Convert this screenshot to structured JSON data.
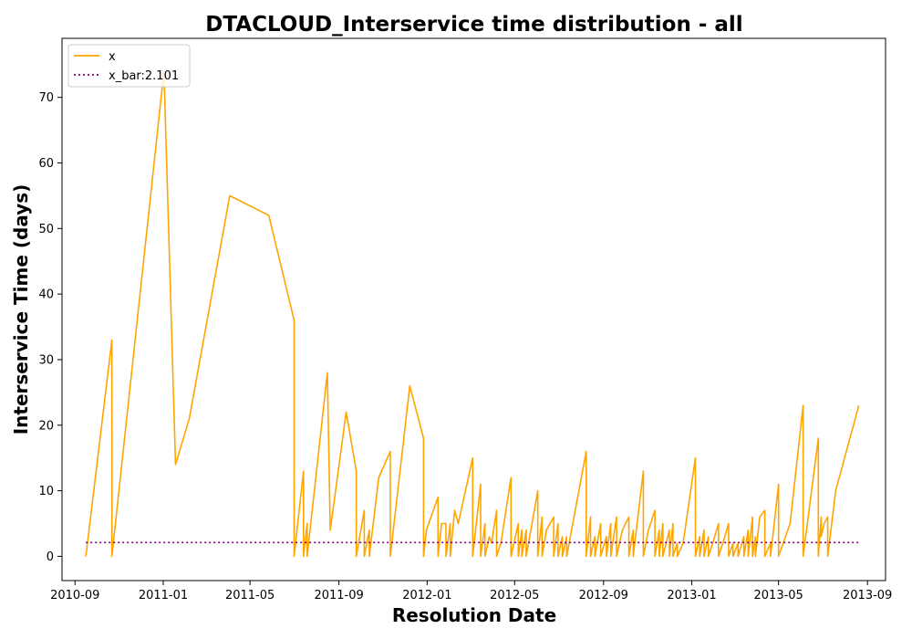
{
  "chart_data": {
    "type": "line",
    "title": "DTACLOUD_Interservice time distribution - all",
    "xlabel": "Resolution Date",
    "ylabel": "Interservice Time (days)",
    "x_ticks": [
      "2010-09",
      "2011-01",
      "2011-05",
      "2011-09",
      "2012-01",
      "2012-05",
      "2012-09",
      "2013-01",
      "2013-05",
      "2013-09"
    ],
    "y_ticks": [
      0,
      10,
      20,
      30,
      40,
      50,
      60,
      70
    ],
    "xlim": [
      "2010-08-14",
      "2013-09-26"
    ],
    "ylim": [
      -3.7,
      79
    ],
    "grid": false,
    "legend_position": "top-left",
    "series": [
      {
        "name": "x",
        "color": "#ffa500",
        "style": "solid",
        "points": [
          [
            "2010-09-16",
            0
          ],
          [
            "2010-10-22",
            33
          ],
          [
            "2010-10-22",
            0
          ],
          [
            "2011-01-02",
            74
          ],
          [
            "2011-01-18",
            14
          ],
          [
            "2011-02-06",
            21
          ],
          [
            "2011-04-03",
            55
          ],
          [
            "2011-05-27",
            52
          ],
          [
            "2011-07-01",
            36
          ],
          [
            "2011-07-01",
            0
          ],
          [
            "2011-07-14",
            13
          ],
          [
            "2011-07-14",
            0
          ],
          [
            "2011-07-19",
            5
          ],
          [
            "2011-07-19",
            0
          ],
          [
            "2011-08-16",
            28
          ],
          [
            "2011-08-20",
            4
          ],
          [
            "2011-09-11",
            22
          ],
          [
            "2011-09-25",
            13
          ],
          [
            "2011-09-25",
            0
          ],
          [
            "2011-10-06",
            7
          ],
          [
            "2011-10-06",
            0
          ],
          [
            "2011-10-13",
            4
          ],
          [
            "2011-10-13",
            0
          ],
          [
            "2011-10-26",
            12
          ],
          [
            "2011-11-11",
            16
          ],
          [
            "2011-11-11",
            0
          ],
          [
            "2011-12-08",
            26
          ],
          [
            "2011-12-27",
            18
          ],
          [
            "2011-12-27",
            0
          ],
          [
            "2011-12-31",
            4
          ],
          [
            "2012-01-16",
            9
          ],
          [
            "2012-01-16",
            0
          ],
          [
            "2012-01-21",
            5
          ],
          [
            "2012-01-27",
            5
          ],
          [
            "2012-01-27",
            0
          ],
          [
            "2012-02-02",
            5
          ],
          [
            "2012-02-02",
            0
          ],
          [
            "2012-02-08",
            7
          ],
          [
            "2012-02-13",
            5
          ],
          [
            "2012-03-04",
            15
          ],
          [
            "2012-03-04",
            0
          ],
          [
            "2012-03-15",
            11
          ],
          [
            "2012-03-15",
            0
          ],
          [
            "2012-03-21",
            5
          ],
          [
            "2012-03-21",
            0
          ],
          [
            "2012-03-27",
            3
          ],
          [
            "2012-03-30",
            2
          ],
          [
            "2012-04-06",
            7
          ],
          [
            "2012-04-06",
            0
          ],
          [
            "2012-04-12",
            2
          ],
          [
            "2012-04-26",
            12
          ],
          [
            "2012-04-26",
            0
          ],
          [
            "2012-05-06",
            5
          ],
          [
            "2012-05-06",
            0
          ],
          [
            "2012-05-11",
            4
          ],
          [
            "2012-05-11",
            0
          ],
          [
            "2012-05-17",
            4
          ],
          [
            "2012-05-17",
            0
          ],
          [
            "2012-06-02",
            10
          ],
          [
            "2012-06-02",
            0
          ],
          [
            "2012-06-08",
            6
          ],
          [
            "2012-06-08",
            0
          ],
          [
            "2012-06-14",
            4
          ],
          [
            "2012-06-24",
            6
          ],
          [
            "2012-06-24",
            0
          ],
          [
            "2012-06-30",
            5
          ],
          [
            "2012-06-30",
            0
          ],
          [
            "2012-07-06",
            3
          ],
          [
            "2012-07-06",
            0
          ],
          [
            "2012-07-12",
            3
          ],
          [
            "2012-07-12",
            0
          ],
          [
            "2012-08-08",
            16
          ],
          [
            "2012-08-08",
            0
          ],
          [
            "2012-08-14",
            6
          ],
          [
            "2012-08-14",
            0
          ],
          [
            "2012-08-20",
            3
          ],
          [
            "2012-08-20",
            0
          ],
          [
            "2012-08-28",
            5
          ],
          [
            "2012-08-28",
            0
          ],
          [
            "2012-09-05",
            3
          ],
          [
            "2012-09-05",
            0
          ],
          [
            "2012-09-11",
            5
          ],
          [
            "2012-09-11",
            0
          ],
          [
            "2012-09-19",
            6
          ],
          [
            "2012-09-19",
            0
          ],
          [
            "2012-09-27",
            4
          ],
          [
            "2012-10-06",
            6
          ],
          [
            "2012-10-06",
            0
          ],
          [
            "2012-10-12",
            4
          ],
          [
            "2012-10-12",
            0
          ],
          [
            "2012-10-26",
            13
          ],
          [
            "2012-10-26",
            0
          ],
          [
            "2012-11-02",
            4
          ],
          [
            "2012-11-11",
            7
          ],
          [
            "2012-11-11",
            0
          ],
          [
            "2012-11-17",
            4
          ],
          [
            "2012-11-17",
            0
          ],
          [
            "2012-11-22",
            5
          ],
          [
            "2012-11-22",
            0
          ],
          [
            "2012-12-01",
            4
          ],
          [
            "2012-12-01",
            0
          ],
          [
            "2012-12-06",
            5
          ],
          [
            "2012-12-06",
            0
          ],
          [
            "2012-12-12",
            2
          ],
          [
            "2012-12-12",
            0
          ],
          [
            "2012-12-20",
            2
          ],
          [
            "2013-01-06",
            15
          ],
          [
            "2013-01-06",
            0
          ],
          [
            "2013-01-12",
            3
          ],
          [
            "2013-01-12",
            0
          ],
          [
            "2013-01-18",
            4
          ],
          [
            "2013-01-18",
            0
          ],
          [
            "2013-01-24",
            3
          ],
          [
            "2013-01-24",
            0
          ],
          [
            "2013-01-30",
            2
          ],
          [
            "2013-02-07",
            5
          ],
          [
            "2013-02-07",
            0
          ],
          [
            "2013-02-13",
            2
          ],
          [
            "2013-02-21",
            5
          ],
          [
            "2013-02-21",
            0
          ],
          [
            "2013-02-27",
            2
          ],
          [
            "2013-02-27",
            0
          ],
          [
            "2013-03-06",
            2
          ],
          [
            "2013-03-06",
            0
          ],
          [
            "2013-03-14",
            3
          ],
          [
            "2013-03-14",
            0
          ],
          [
            "2013-03-20",
            4
          ],
          [
            "2013-03-20",
            0
          ],
          [
            "2013-03-26",
            6
          ],
          [
            "2013-03-26",
            0
          ],
          [
            "2013-03-30",
            3
          ],
          [
            "2013-03-30",
            0
          ],
          [
            "2013-04-05",
            6
          ],
          [
            "2013-04-12",
            7
          ],
          [
            "2013-04-12",
            0
          ],
          [
            "2013-04-20",
            2
          ],
          [
            "2013-04-20",
            0
          ],
          [
            "2013-05-01",
            11
          ],
          [
            "2013-05-01",
            0
          ],
          [
            "2013-05-17",
            5
          ],
          [
            "2013-06-04",
            23
          ],
          [
            "2013-06-04",
            0
          ],
          [
            "2013-06-25",
            18
          ],
          [
            "2013-06-25",
            0
          ],
          [
            "2013-06-29",
            6
          ],
          [
            "2013-06-29",
            3
          ],
          [
            "2013-07-03",
            5
          ],
          [
            "2013-07-08",
            6
          ],
          [
            "2013-07-08",
            0
          ],
          [
            "2013-07-19",
            10
          ],
          [
            "2013-08-20",
            23
          ]
        ]
      },
      {
        "name": "x_bar:2.101",
        "color": "#800080",
        "style": "dotted",
        "points": [
          [
            "2010-09-16",
            2.101
          ],
          [
            "2013-08-20",
            2.101
          ]
        ]
      }
    ]
  }
}
